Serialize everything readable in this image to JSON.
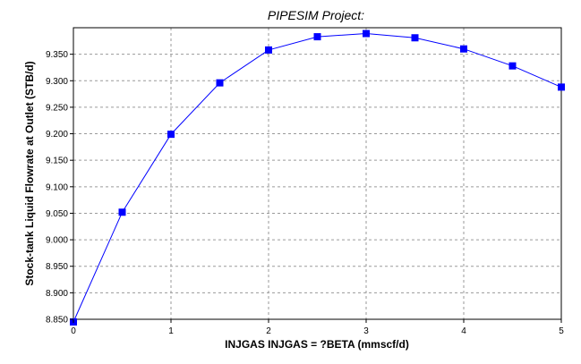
{
  "chart_data": {
    "type": "line",
    "title": "PIPESIM Project:",
    "xlabel": "INJGAS INJGAS = ?BETA (mmscf/d)",
    "ylabel": "Stock-tank Liquid Flowrate at Outlet (STB/d)",
    "xlim": [
      0,
      5
    ],
    "ylim": [
      8.85,
      9.4
    ],
    "grid": true,
    "x_ticks": [
      "0",
      "1",
      "2",
      "3",
      "4",
      "5"
    ],
    "y_ticks": [
      "8.850",
      "8.900",
      "8.950",
      "9.000",
      "9.050",
      "9.100",
      "9.150",
      "9.200",
      "9.250",
      "9.300",
      "9.350"
    ],
    "series": [
      {
        "color": "#0000ff",
        "marker": "square",
        "x": [
          0,
          0.5,
          1,
          1.5,
          2,
          2.5,
          3,
          3.5,
          4,
          4.5,
          5
        ],
        "y": [
          8.845,
          9.052,
          9.199,
          9.296,
          9.358,
          9.383,
          9.389,
          9.381,
          9.36,
          9.328,
          9.288
        ]
      }
    ]
  }
}
